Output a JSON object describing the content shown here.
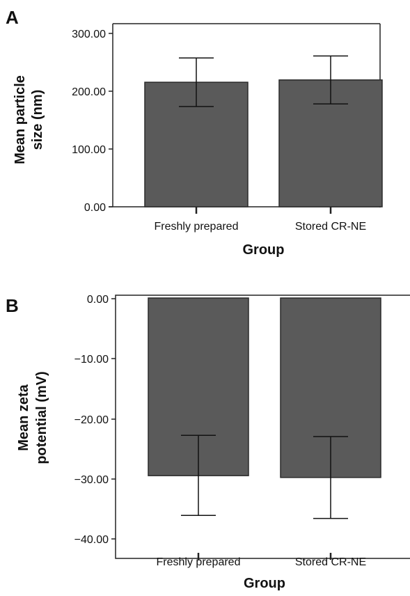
{
  "chart_data": [
    {
      "panel": "A",
      "type": "bar",
      "categories": [
        "Freshly prepared",
        "Stored CR-NE"
      ],
      "values": [
        215.5,
        219.5
      ],
      "error_low": [
        173.5,
        178.0
      ],
      "error_high": [
        257.5,
        261.0
      ],
      "ylabel_lines": [
        "Mean particle",
        "size (nm)"
      ],
      "xlabel": "Group",
      "yticks": [
        "300.00",
        "200.00",
        "100.00",
        "0.00"
      ],
      "ylim": [
        0,
        300
      ],
      "bar_color": "#5a5a5a",
      "grid": false
    },
    {
      "panel": "B",
      "type": "bar",
      "categories": [
        "Freshly prepared",
        "Stored CR-NE"
      ],
      "values": [
        -29.5,
        -29.8
      ],
      "error_low": [
        -36.1,
        -36.6
      ],
      "error_high": [
        -22.8,
        -23.0
      ],
      "ylabel_lines": [
        "Mean zeta",
        "potential (mV)"
      ],
      "xlabel": "Group",
      "yticks": [
        "0.00",
        "−10.00",
        "−20.00",
        "−30.00",
        "−40.00"
      ],
      "ylim": [
        -40,
        0
      ],
      "bar_color": "#5a5a5a",
      "grid": false
    }
  ]
}
